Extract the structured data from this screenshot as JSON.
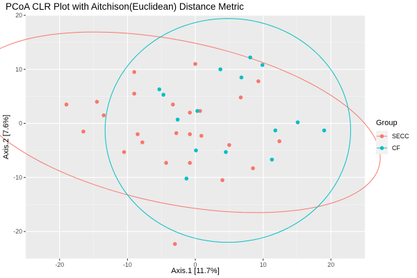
{
  "chart_data": {
    "type": "scatter",
    "title": "PCoA CLR Plot with Aitchison(Euclidean) Distance Metric",
    "xlabel": "Axis.1   [11.7%]",
    "ylabel": "Axis.2   [7.6%]",
    "xlim": [
      -25,
      25
    ],
    "ylim": [
      -25,
      20
    ],
    "xticks": [
      -20,
      -10,
      0,
      10,
      20
    ],
    "yticks": [
      -20,
      -10,
      0,
      10,
      20
    ],
    "grid": true,
    "legend": {
      "title": "Group",
      "position": "right"
    },
    "series": [
      {
        "name": "SECC",
        "color": "#F8766D",
        "points": [
          [
            -19.0,
            3.5
          ],
          [
            -14.5,
            4.0
          ],
          [
            -13.5,
            1.5
          ],
          [
            -16.5,
            -1.5
          ],
          [
            -9.0,
            9.5
          ],
          [
            -9.0,
            5.5
          ],
          [
            -8.5,
            -2.0
          ],
          [
            -7.8,
            -3.5
          ],
          [
            -10.5,
            -5.3
          ],
          [
            -4.3,
            -7.3
          ],
          [
            -3.3,
            3.5
          ],
          [
            -2.8,
            -1.8
          ],
          [
            -0.8,
            -2.0
          ],
          [
            -0.8,
            2.0
          ],
          [
            0.0,
            11.0
          ],
          [
            0.7,
            2.3
          ],
          [
            0.9,
            -2.3
          ],
          [
            -0.8,
            -7.3
          ],
          [
            5.0,
            -4.0
          ],
          [
            4.0,
            -10.5
          ],
          [
            6.7,
            4.8
          ],
          [
            9.3,
            7.8
          ],
          [
            8.5,
            -8.3
          ],
          [
            12.4,
            -3.3
          ],
          [
            -3.0,
            -22.3
          ]
        ]
      },
      {
        "name": "CF",
        "color": "#00BFC4",
        "points": [
          [
            -5.3,
            6.3
          ],
          [
            -4.7,
            5.3
          ],
          [
            -2.6,
            0.7
          ],
          [
            0.3,
            2.3
          ],
          [
            3.7,
            10.0
          ],
          [
            6.8,
            8.5
          ],
          [
            8.1,
            12.2
          ],
          [
            9.9,
            10.8
          ],
          [
            11.8,
            -1.3
          ],
          [
            15.1,
            0.2
          ],
          [
            19.0,
            -1.3
          ],
          [
            4.5,
            -5.3
          ],
          [
            0.1,
            -5.0
          ],
          [
            11.3,
            -6.7
          ],
          [
            -1.3,
            -10.2
          ]
        ]
      }
    ],
    "ellipses": [
      {
        "group": "SECC",
        "color": "#F8766D",
        "center": [
          -3.0,
          0.2
        ],
        "semi_axes": [
          31.2,
          14.9
        ],
        "rotation_deg": -16
      },
      {
        "group": "CF",
        "color": "#00BFC4",
        "center": [
          4.8,
          -1.3
        ],
        "semi_axes": [
          18.1,
          20.7
        ],
        "rotation_deg": 0
      }
    ]
  }
}
